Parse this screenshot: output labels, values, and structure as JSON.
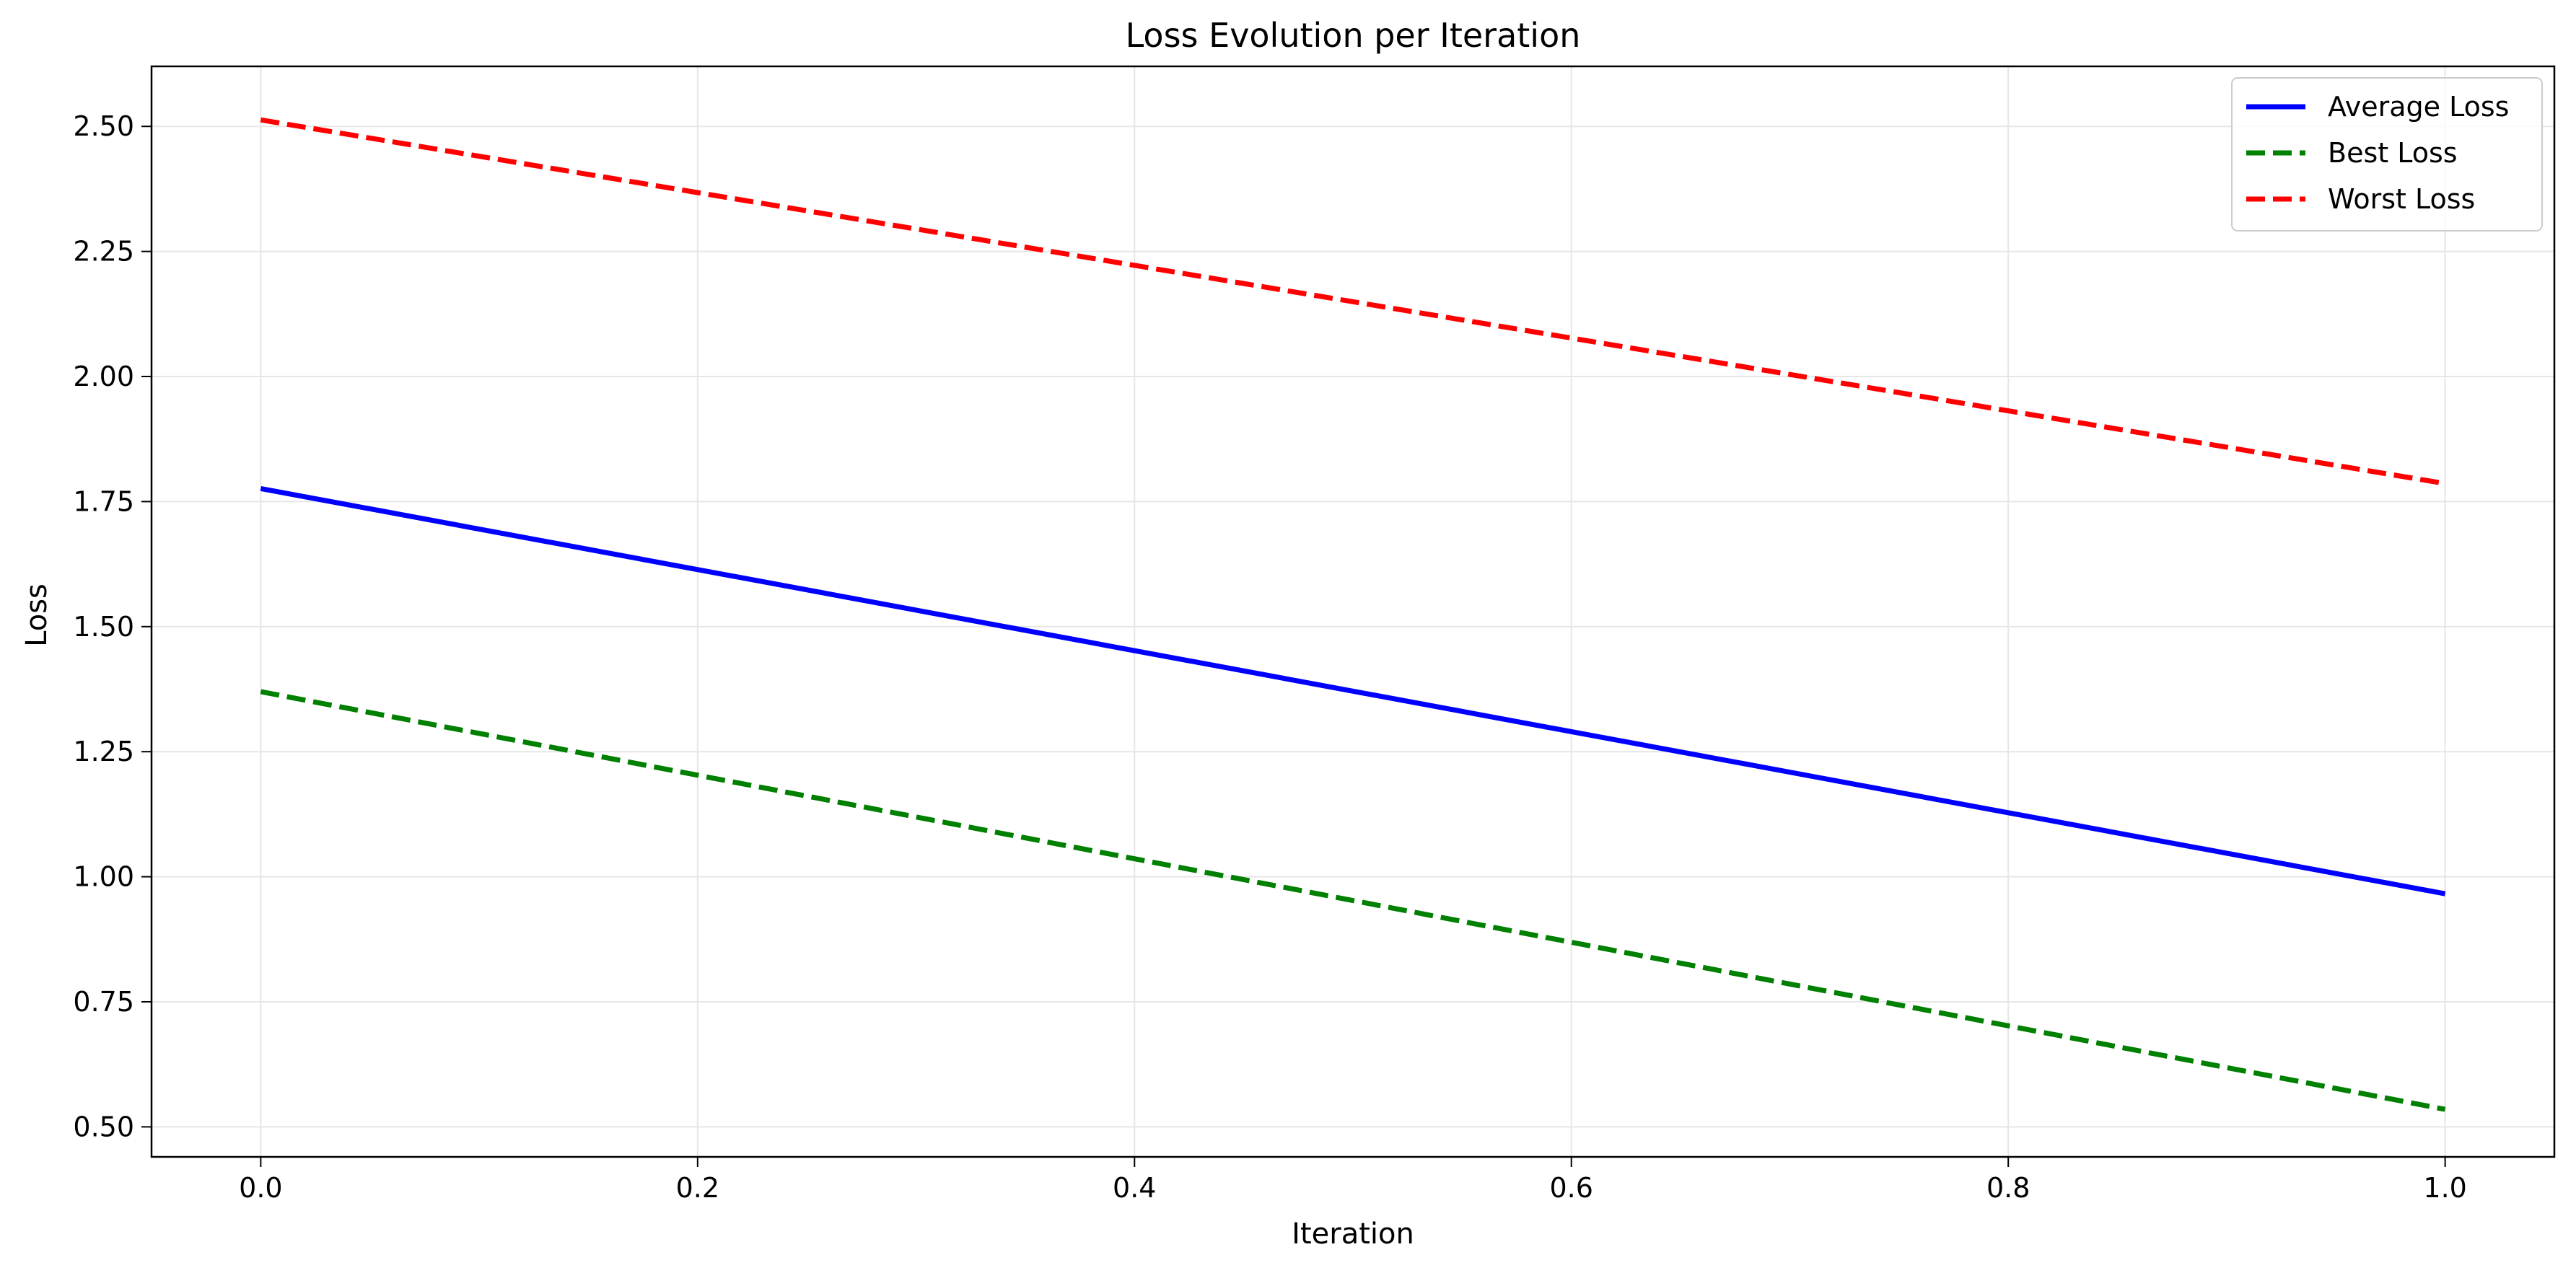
{
  "chart_data": {
    "type": "line",
    "title": "Loss Evolution per Iteration",
    "xlabel": "Iteration",
    "ylabel": "Loss",
    "x": [
      0,
      1
    ],
    "xlim": [
      -0.05,
      1.05
    ],
    "ylim": [
      0.44,
      2.62
    ],
    "xticks": [
      0.0,
      0.2,
      0.4,
      0.6,
      0.8,
      1.0
    ],
    "xtick_labels": [
      "0.0",
      "0.2",
      "0.4",
      "0.6",
      "0.8",
      "1.0"
    ],
    "yticks": [
      0.5,
      0.75,
      1.0,
      1.25,
      1.5,
      1.75,
      2.0,
      2.25,
      2.5
    ],
    "ytick_labels": [
      "0.50",
      "0.75",
      "1.00",
      "1.25",
      "1.50",
      "1.75",
      "2.00",
      "2.25",
      "2.50"
    ],
    "grid": true,
    "legend_position": "top-right",
    "series": [
      {
        "name": "Average Loss",
        "values": [
          1.776,
          0.966
        ],
        "color": "#0000ff",
        "style": "solid"
      },
      {
        "name": "Best Loss",
        "values": [
          1.37,
          0.535
        ],
        "color": "#008000",
        "style": "dashed"
      },
      {
        "name": "Worst Loss",
        "values": [
          2.513,
          1.786
        ],
        "color": "#ff0000",
        "style": "dashed"
      }
    ]
  }
}
